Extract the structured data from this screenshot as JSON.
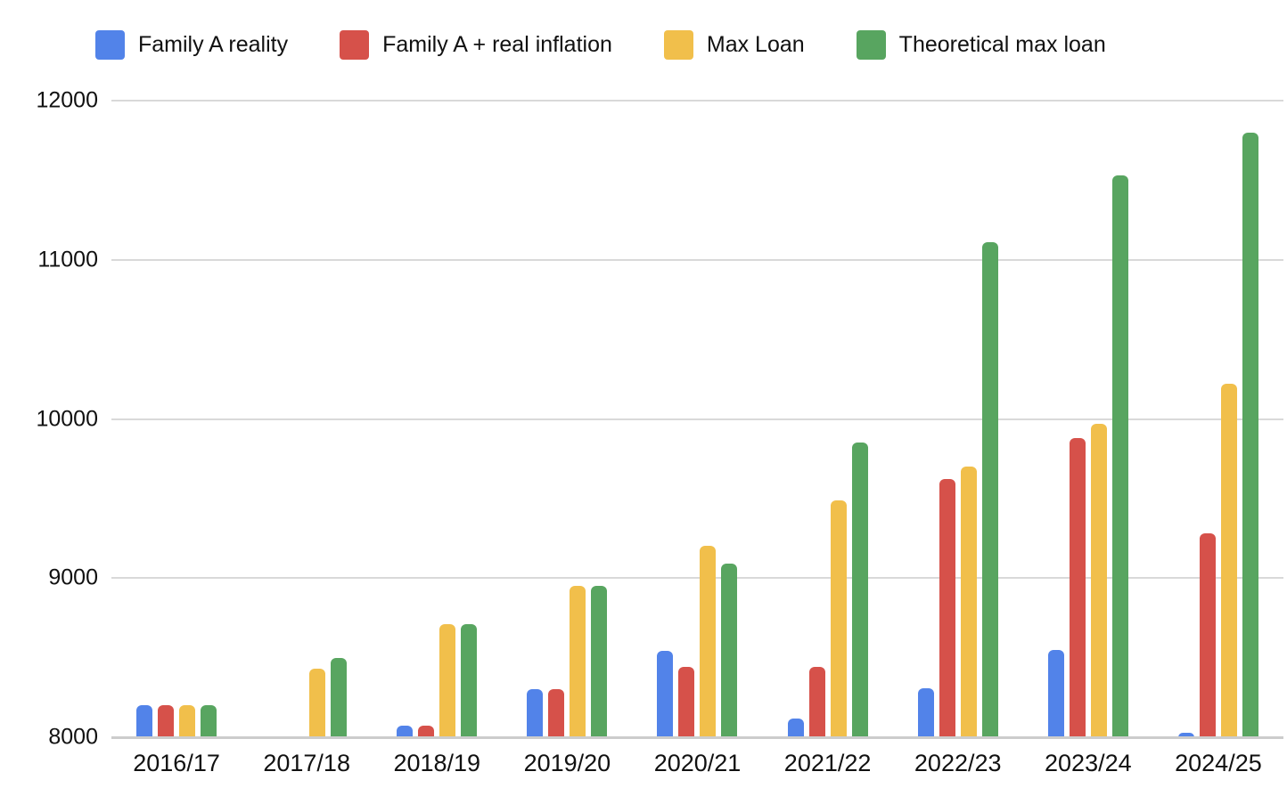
{
  "chart_data": {
    "type": "bar",
    "title": "",
    "categories": [
      "2016/17",
      "2017/18",
      "2018/19",
      "2019/20",
      "2020/21",
      "2021/22",
      "2022/23",
      "2023/24",
      "2024/25"
    ],
    "series": [
      {
        "name": "Family A reality",
        "color": "#5283E9",
        "values": [
          8200,
          8000,
          8070,
          8300,
          8540,
          8120,
          8310,
          8550,
          8030
        ]
      },
      {
        "name": "Family A + real inflation",
        "color": "#D6514A",
        "values": [
          8200,
          8000,
          8070,
          8300,
          8440,
          8440,
          9620,
          9880,
          9280
        ]
      },
      {
        "name": "Max Loan",
        "color": "#F1BF4B",
        "values": [
          8200,
          8430,
          8710,
          8950,
          9200,
          9490,
          9700,
          9970,
          10220
        ]
      },
      {
        "name": "Theoretical max loan",
        "color": "#58A560",
        "values": [
          8200,
          8500,
          8710,
          8950,
          9090,
          9850,
          11110,
          11530,
          11800
        ]
      }
    ],
    "xlabel": "",
    "ylabel": "",
    "ylim": [
      8000,
      12000
    ],
    "yticks": [
      8000,
      9000,
      10000,
      11000,
      12000
    ],
    "grid": "horizontal",
    "legend_position": "top"
  },
  "colors": {
    "background": "#FFFFFF",
    "gridline": "#D9D9D9",
    "axis_line": "#CCCCCC",
    "text": "#111111"
  }
}
